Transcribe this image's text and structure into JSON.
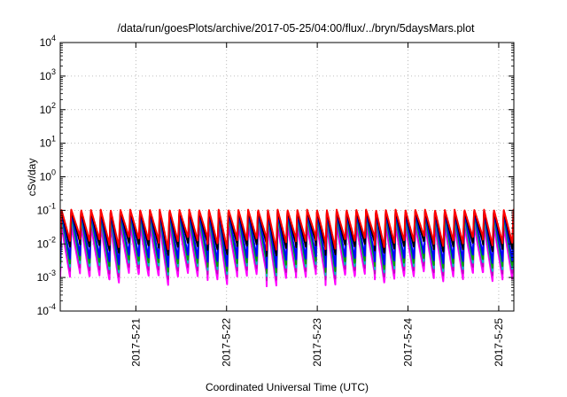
{
  "chart_data": {
    "type": "line",
    "title": "/data/run/goesPlots/archive/2017-05-25/04:00/flux/../bryn/5daysMars.plot",
    "xlabel": "Coordinated Universal Time (UTC)",
    "ylabel": "cSv/day",
    "yscale": "log",
    "ylim": [
      0.0001,
      10000
    ],
    "xlim": [
      "2017-05-20T04:00",
      "2017-05-25T04:00"
    ],
    "grid": true,
    "y_ticks": [
      {
        "base": "10",
        "exp": "-4"
      },
      {
        "base": "10",
        "exp": "-3"
      },
      {
        "base": "10",
        "exp": "-2"
      },
      {
        "base": "10",
        "exp": "-1"
      },
      {
        "base": "10",
        "exp": "0"
      },
      {
        "base": "10",
        "exp": "1"
      },
      {
        "base": "10",
        "exp": "2"
      },
      {
        "base": "10",
        "exp": "3"
      },
      {
        "base": "10",
        "exp": "4"
      }
    ],
    "x_ticks": [
      {
        "label": "2017-5-21",
        "date": "2017-05-21T00:00"
      },
      {
        "label": "2017-5-22",
        "date": "2017-05-22T00:00"
      },
      {
        "label": "2017-5-23",
        "date": "2017-05-23T00:00"
      },
      {
        "label": "2017-5-24",
        "date": "2017-05-24T00:00"
      },
      {
        "label": "2017-5-25",
        "date": "2017-05-25T00:00"
      }
    ],
    "pattern": {
      "description_free": true,
      "period_hours": 2.6,
      "peak_value": 0.1,
      "trough_min": 0.001,
      "trough_max": 0.012
    },
    "series": [
      {
        "color": "#ff0000",
        "peak": 0.105,
        "trough": 0.012
      },
      {
        "color": "#000000",
        "peak": 0.1,
        "trough": 0.008
      },
      {
        "color": "#0000ff",
        "peak": 0.09,
        "trough": 0.0035
      },
      {
        "color": "#00a000",
        "peak": 0.08,
        "trough": 0.0025
      },
      {
        "color": "#00c0c0",
        "peak": 0.065,
        "trough": 0.002
      },
      {
        "color": "#c000c0",
        "peak": 0.05,
        "trough": 0.0015
      },
      {
        "color": "#ff00ff",
        "peak": 0.035,
        "trough": 0.001
      }
    ]
  }
}
